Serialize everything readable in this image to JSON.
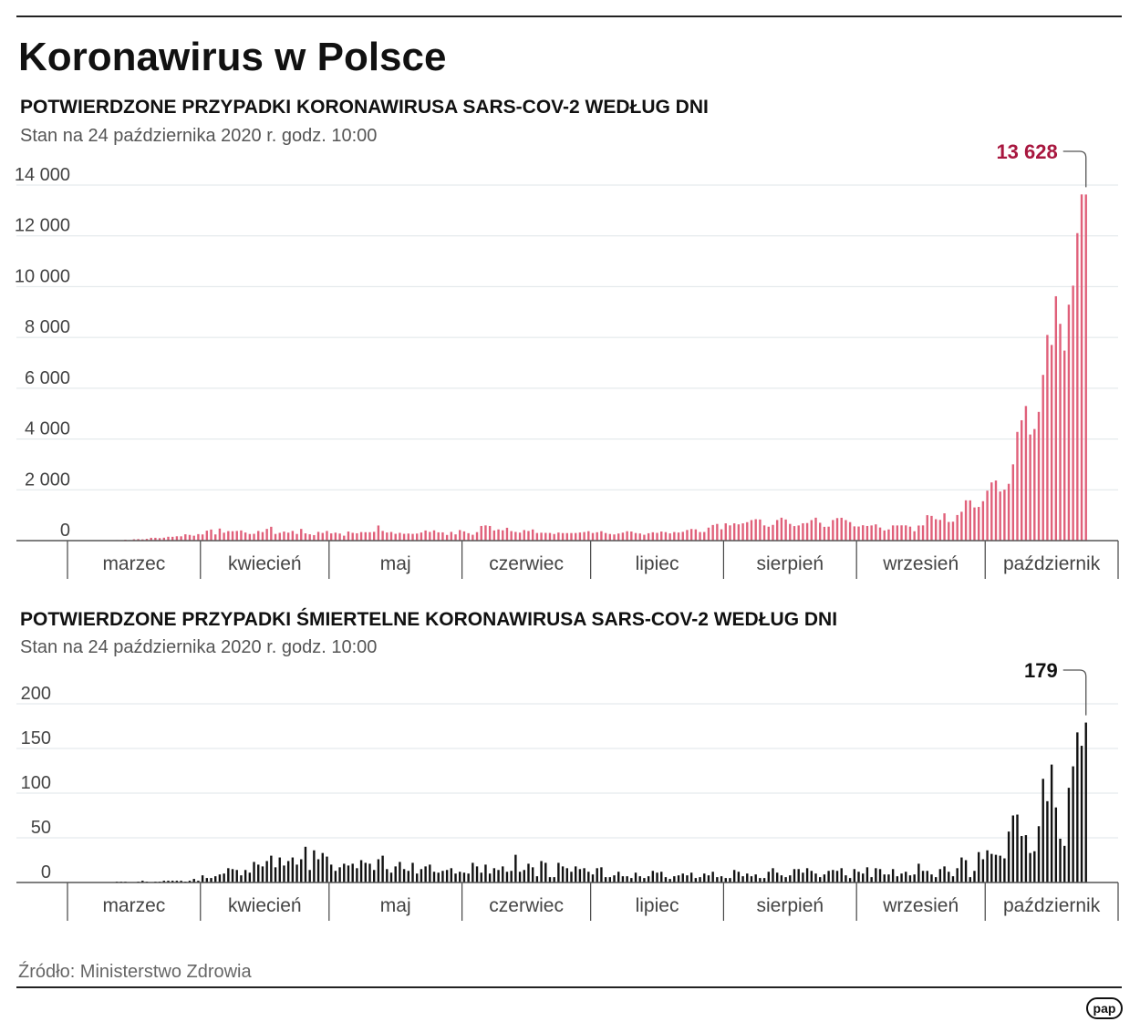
{
  "header": {
    "title": "Koronawirus w Polsce",
    "source": "Źródło: Ministerstwo Zdrowia",
    "logo": "pap"
  },
  "chart_data": [
    {
      "type": "bar",
      "title": "POTWIERDZONE PRZYPADKI KORONAWIRUSA SARS-COV-2 WEDŁUG DNI",
      "subtitle": "Stan na 24 października 2020 r. godz. 10:00",
      "color": "#e0607a",
      "annotation": {
        "label": "13 628",
        "value": 13628,
        "color": "#a8173f"
      },
      "ylim": [
        0,
        14000
      ],
      "yticks": [
        0,
        2000,
        4000,
        6000,
        8000,
        10000,
        12000,
        14000
      ],
      "ytick_labels": [
        "0",
        "2 000",
        "4 000",
        "6 000",
        "8 000",
        "10 000",
        "12 000",
        "14 000"
      ],
      "grid": true,
      "months": [
        {
          "label": "marzec",
          "values": [
            0,
            0,
            0,
            1,
            0,
            4,
            1,
            5,
            6,
            5,
            9,
            20,
            17,
            36,
            21,
            52,
            61,
            49,
            70,
            111,
            111,
            98,
            115,
            152,
            150,
            170,
            168,
            249,
            224,
            193,
            256
          ]
        },
        {
          "label": "kwiecień",
          "values": [
            243,
            392,
            437,
            244,
            475,
            311,
            374,
            370,
            380,
            401,
            318,
            260,
            268,
            380,
            336,
            461,
            545,
            263,
            306,
            355,
            313,
            381,
            263,
            460,
            285,
            249,
            217,
            344,
            303,
            380
          ]
        },
        {
          "label": "maj",
          "values": [
            285,
            314,
            279,
            195,
            357,
            307,
            288,
            336,
            330,
            330,
            345,
            595,
            381,
            319,
            340,
            268,
            306,
            268,
            279,
            266,
            278,
            319,
            399,
            342,
            404,
            326,
            325,
            223,
            344,
            246,
            416
          ]
        },
        {
          "label": "czerwiec",
          "values": [
            364,
            292,
            230,
            333,
            576,
            599,
            575,
            400,
            441,
            407,
            506,
            375,
            342,
            314,
            416,
            378,
            440,
            300,
            311,
            305,
            301,
            261,
            318,
            297,
            296,
            298,
            300,
            319,
            337,
            371
          ]
        },
        {
          "label": "lipiec",
          "values": [
            300,
            329,
            371,
            299,
            262,
            243,
            280,
            314,
            369,
            358,
            299,
            282,
            231,
            290,
            328,
            304,
            358,
            334,
            285,
            337,
            319,
            345,
            418,
            458,
            443,
            337,
            339,
            512,
            615,
            657,
            447
          ]
        },
        {
          "label": "sierpień",
          "values": [
            680,
            600,
            680,
            640,
            680,
            726,
            809,
            843,
            832,
            599,
            548,
            619,
            811,
            903,
            832,
            658,
            571,
            597,
            683,
            692,
            808,
            903,
            704,
            543,
            550,
            811,
            887,
            900,
            809,
            728,
            561
          ]
        },
        {
          "label": "wrzesień",
          "values": [
            555,
            605,
            576,
            597,
            639,
            516,
            401,
            441,
            599,
            597,
            601,
            600,
            551,
            370,
            594,
            600,
            1002,
            974,
            843,
            816,
            1075,
            734,
            746,
            1008,
            1136,
            1587,
            1584,
            1306,
            1326,
            1552
          ]
        },
        {
          "label": "październik",
          "values": [
            1967,
            2292,
            2367,
            1934,
            2006,
            2236,
            3003,
            4280,
            4739,
            5300,
            4178,
            4394,
            5068,
            6526,
            8099,
            7705,
            9622,
            8536,
            7482,
            9291,
            10040,
            12107,
            13632,
            13628
          ]
        }
      ]
    },
    {
      "type": "bar",
      "title": "POTWIERDZONE PRZYPADKI ŚMIERTELNE KORONAWIRUSA SARS-COV-2 WEDŁUG DNI",
      "subtitle": "Stan na 24 października 2020 r. godz. 10:00",
      "color": "#111111",
      "annotation": {
        "label": "179",
        "value": 179,
        "color": "#111111"
      },
      "ylim": [
        0,
        200
      ],
      "yticks": [
        0,
        50,
        100,
        150,
        200
      ],
      "ytick_labels": [
        "0",
        "50",
        "100",
        "150",
        "200"
      ],
      "grid": true,
      "months": [
        {
          "label": "marzec",
          "values": [
            0,
            0,
            0,
            0,
            0,
            0,
            0,
            0,
            0,
            0,
            0,
            1,
            1,
            1,
            0,
            0,
            1,
            2,
            1,
            0,
            1,
            1,
            2,
            2,
            2,
            2,
            2,
            1,
            2,
            4,
            2
          ]
        },
        {
          "label": "kwiecień",
          "values": [
            8,
            5,
            5,
            7,
            9,
            10,
            16,
            15,
            14,
            8,
            14,
            11,
            23,
            20,
            18,
            24,
            30,
            17,
            28,
            19,
            24,
            28,
            20,
            26,
            40,
            14,
            36,
            26,
            33,
            29
          ]
        },
        {
          "label": "maj",
          "values": [
            20,
            13,
            17,
            21,
            19,
            21,
            16,
            25,
            22,
            21,
            14,
            26,
            30,
            15,
            11,
            18,
            23,
            15,
            13,
            22,
            10,
            15,
            18,
            20,
            12,
            11,
            13,
            14,
            16,
            10,
            12
          ]
        },
        {
          "label": "czerwiec",
          "values": [
            11,
            10,
            22,
            18,
            11,
            20,
            10,
            16,
            14,
            18,
            12,
            13,
            31,
            12,
            14,
            21,
            17,
            7,
            24,
            22,
            6,
            6,
            22,
            18,
            16,
            12,
            18,
            15,
            16,
            12
          ]
        },
        {
          "label": "lipiec",
          "values": [
            9,
            16,
            17,
            6,
            6,
            8,
            12,
            7,
            7,
            5,
            11,
            7,
            5,
            7,
            13,
            11,
            12,
            6,
            4,
            7,
            8,
            10,
            8,
            11,
            5,
            6,
            10,
            8,
            12,
            6,
            7
          ]
        },
        {
          "label": "sierpień",
          "values": [
            5,
            5,
            14,
            12,
            7,
            10,
            7,
            9,
            5,
            5,
            12,
            16,
            11,
            8,
            6,
            8,
            15,
            15,
            11,
            16,
            13,
            10,
            6,
            9,
            13,
            14,
            13,
            16,
            8,
            5,
            15
          ]
        },
        {
          "label": "wrzesień",
          "values": [
            12,
            10,
            17,
            6,
            16,
            15,
            9,
            9,
            15,
            7,
            10,
            12,
            8,
            9,
            21,
            13,
            13,
            9,
            6,
            15,
            18,
            12,
            7,
            16,
            28,
            25,
            6,
            13,
            34,
            26
          ]
        },
        {
          "label": "październik",
          "values": [
            36,
            32,
            31,
            30,
            27,
            57,
            75,
            76,
            52,
            53,
            33,
            35,
            63,
            116,
            91,
            132,
            84,
            49,
            41,
            106,
            130,
            168,
            153,
            179
          ]
        }
      ]
    }
  ]
}
